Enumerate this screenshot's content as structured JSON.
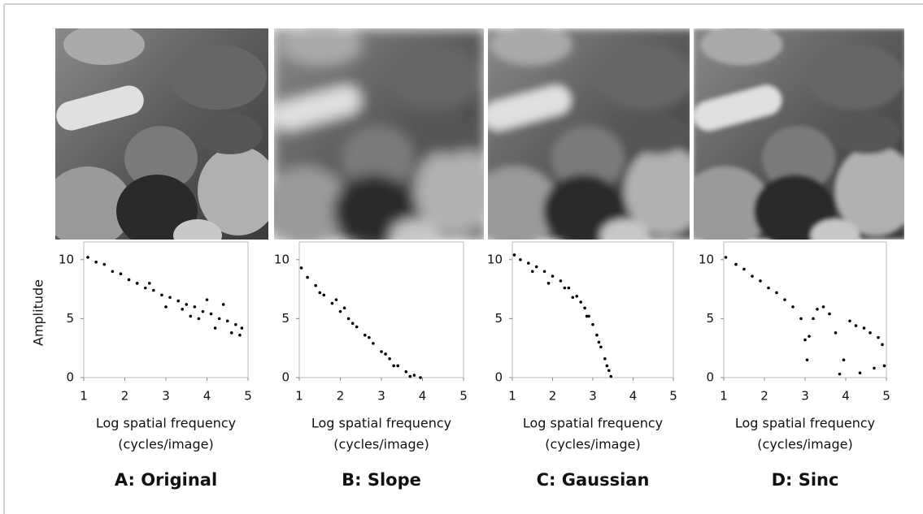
{
  "chart_data": [
    {
      "type": "scatter",
      "title": "A: Original",
      "xlabel": [
        "Log spatial frequency",
        "(cycles/image)"
      ],
      "ylabel": "Amplitude",
      "xlim": [
        1,
        5
      ],
      "ylim": [
        0,
        11.5
      ],
      "xticks": [
        1,
        2,
        3,
        4,
        5
      ],
      "yticks": [
        0,
        5,
        10
      ],
      "color": "#000000",
      "x": [
        1.1,
        1.3,
        1.5,
        1.7,
        1.9,
        2.1,
        2.3,
        2.5,
        2.7,
        2.9,
        3.1,
        3.3,
        3.5,
        3.7,
        3.9,
        4.1,
        4.3,
        4.5,
        4.7,
        4.85,
        3.0,
        3.4,
        3.8,
        4.2,
        4.6,
        4.8,
        4.4,
        4.0,
        3.6,
        2.6
      ],
      "values": [
        10.2,
        9.8,
        9.6,
        9.0,
        8.8,
        8.3,
        8.0,
        7.6,
        7.4,
        7.0,
        6.8,
        6.5,
        6.2,
        6.0,
        5.6,
        5.4,
        5.0,
        4.8,
        4.5,
        4.2,
        6.0,
        5.8,
        5.0,
        4.2,
        3.8,
        3.6,
        6.2,
        6.6,
        5.2,
        8.0
      ]
    },
    {
      "type": "scatter",
      "title": "B: Slope",
      "xlabel": [
        "Log spatial frequency",
        "(cycles/image)"
      ],
      "xlim": [
        1,
        5
      ],
      "ylim": [
        0,
        11.5
      ],
      "xticks": [
        1,
        2,
        3,
        4,
        5
      ],
      "yticks": [
        0,
        5,
        10
      ],
      "color": "#000000",
      "x": [
        1.05,
        1.2,
        1.4,
        1.6,
        1.8,
        2.0,
        2.2,
        2.4,
        2.6,
        2.8,
        3.0,
        3.2,
        3.4,
        3.6,
        3.8,
        3.95,
        1.5,
        2.1,
        2.7,
        3.3,
        3.7,
        2.3,
        1.9,
        3.1
      ],
      "values": [
        9.3,
        8.5,
        7.8,
        7.0,
        6.3,
        5.6,
        5.0,
        4.3,
        3.6,
        2.9,
        2.2,
        1.6,
        1.0,
        0.5,
        0.2,
        0.0,
        7.2,
        5.9,
        3.4,
        1.0,
        0.1,
        4.6,
        6.6,
        2.0
      ]
    },
    {
      "type": "scatter",
      "title": "C: Gaussian",
      "xlabel": [
        "Log spatial frequency",
        "(cycles/image)"
      ],
      "xlim": [
        1,
        5
      ],
      "ylim": [
        0,
        11.5
      ],
      "xticks": [
        1,
        2,
        3,
        4,
        5
      ],
      "yticks": [
        0,
        5,
        10
      ],
      "color": "#000000",
      "x": [
        1.05,
        1.2,
        1.4,
        1.6,
        1.8,
        2.0,
        2.2,
        2.4,
        2.6,
        2.7,
        2.8,
        2.9,
        3.0,
        3.1,
        3.2,
        3.3,
        3.4,
        3.45,
        1.5,
        1.9,
        2.3,
        2.5,
        2.85,
        3.15,
        3.35
      ],
      "values": [
        10.4,
        10.0,
        9.7,
        9.4,
        9.0,
        8.6,
        8.2,
        7.6,
        6.9,
        6.4,
        5.9,
        5.2,
        4.5,
        3.6,
        2.6,
        1.6,
        0.6,
        0.1,
        9.0,
        8.0,
        7.6,
        6.8,
        5.2,
        3.0,
        1.0
      ]
    },
    {
      "type": "scatter",
      "title": "D: Sinc",
      "xlabel": [
        "Log spatial frequency",
        "(cycles/image)"
      ],
      "xlim": [
        1,
        5
      ],
      "ylim": [
        0,
        11.5
      ],
      "xticks": [
        1,
        2,
        3,
        4,
        5
      ],
      "yticks": [
        0,
        5,
        10
      ],
      "color": "#000000",
      "x": [
        1.05,
        1.3,
        1.5,
        1.7,
        1.9,
        2.1,
        2.3,
        2.5,
        2.7,
        2.9,
        3.0,
        3.05,
        3.1,
        3.2,
        3.3,
        3.45,
        3.6,
        3.75,
        3.85,
        3.95,
        4.1,
        4.25,
        4.35,
        4.45,
        4.6,
        4.7,
        4.8,
        4.9,
        4.95
      ],
      "values": [
        10.2,
        9.6,
        9.2,
        8.6,
        8.2,
        7.6,
        7.2,
        6.6,
        6.0,
        5.0,
        3.2,
        1.5,
        3.5,
        5.0,
        5.8,
        6.0,
        5.4,
        3.8,
        0.3,
        1.5,
        4.8,
        4.4,
        0.4,
        4.2,
        3.8,
        0.8,
        3.4,
        2.8,
        1.0
      ]
    }
  ]
}
